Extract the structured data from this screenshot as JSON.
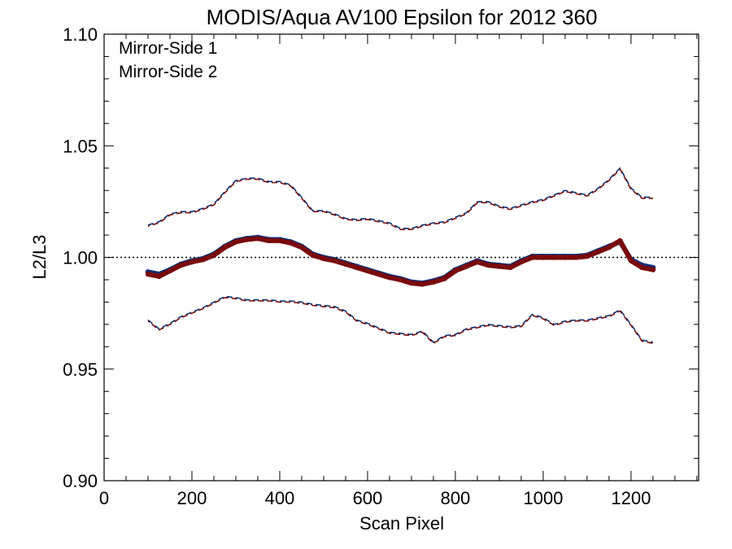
{
  "chart_data": {
    "type": "line",
    "title": "MODIS/Aqua AV100 Epsilon for 2012 360",
    "xlabel": "Scan Pixel",
    "ylabel": "L2/L3",
    "xlim": [
      0,
      1354
    ],
    "ylim": [
      0.9,
      1.1
    ],
    "x_ticks": [
      0,
      200,
      400,
      600,
      800,
      1000,
      1200
    ],
    "x_tick_labels": [
      "0",
      "200",
      "400",
      "600",
      "800",
      "1000",
      "1200"
    ],
    "y_ticks": [
      0.9,
      0.95,
      1.0,
      1.05,
      1.1
    ],
    "y_tick_labels": [
      "0.90",
      "0.95",
      "1.00",
      "1.05",
      "1.10"
    ],
    "reference_line": {
      "y": 1.0,
      "style": "dotted"
    },
    "legend_position": "top-left",
    "x": [
      100,
      125,
      150,
      175,
      200,
      225,
      250,
      275,
      300,
      325,
      350,
      375,
      400,
      425,
      450,
      475,
      500,
      525,
      550,
      575,
      600,
      625,
      650,
      675,
      700,
      725,
      750,
      775,
      800,
      825,
      850,
      875,
      900,
      925,
      950,
      975,
      1000,
      1025,
      1050,
      1075,
      1100,
      1125,
      1150,
      1175,
      1200,
      1225,
      1250
    ],
    "series": [
      {
        "name": "Mirror-Side 1",
        "color": "#0a2f7a",
        "mean": [
          0.9935,
          0.9925,
          0.9945,
          0.997,
          0.9985,
          0.9995,
          1.0015,
          1.005,
          1.0075,
          1.0085,
          1.009,
          1.008,
          1.008,
          1.007,
          1.005,
          1.0015,
          1.0,
          0.999,
          0.9975,
          0.996,
          0.9945,
          0.993,
          0.9915,
          0.9905,
          0.989,
          0.9885,
          0.9895,
          0.991,
          0.9945,
          0.9965,
          0.9985,
          0.997,
          0.9965,
          0.996,
          0.9985,
          1.0005,
          1.0005,
          1.0005,
          1.0005,
          1.0005,
          1.001,
          1.003,
          1.005,
          1.007,
          0.999,
          0.9965,
          0.9955
        ],
        "upper": [
          1.0145,
          1.016,
          1.0195,
          1.0205,
          1.0205,
          1.022,
          1.024,
          1.0295,
          1.0345,
          1.0355,
          1.0355,
          1.034,
          1.034,
          1.0325,
          1.027,
          1.021,
          1.021,
          1.0195,
          1.0175,
          1.017,
          1.0175,
          1.0165,
          1.0155,
          1.013,
          1.013,
          1.0145,
          1.0155,
          1.016,
          1.018,
          1.02,
          1.025,
          1.025,
          1.023,
          1.022,
          1.0235,
          1.025,
          1.026,
          1.028,
          1.03,
          1.029,
          1.028,
          1.031,
          1.035,
          1.04,
          1.031,
          1.027,
          1.027
        ],
        "lower": [
          0.972,
          0.968,
          0.9705,
          0.9735,
          0.9755,
          0.9775,
          0.98,
          0.9825,
          0.982,
          0.981,
          0.981,
          0.981,
          0.9805,
          0.9805,
          0.98,
          0.979,
          0.9785,
          0.978,
          0.976,
          0.972,
          0.9705,
          0.9685,
          0.9665,
          0.966,
          0.9655,
          0.967,
          0.962,
          0.965,
          0.9655,
          0.968,
          0.969,
          0.97,
          0.9695,
          0.969,
          0.9695,
          0.9745,
          0.973,
          0.97,
          0.9715,
          0.972,
          0.972,
          0.973,
          0.974,
          0.9765,
          0.97,
          0.963,
          0.962
        ]
      },
      {
        "name": "Mirror-Side 2",
        "color": "#7a0a0a",
        "mean": [
          0.9925,
          0.9915,
          0.994,
          0.9965,
          0.998,
          0.999,
          1.001,
          1.0045,
          1.007,
          1.008,
          1.0085,
          1.0075,
          1.0075,
          1.0065,
          1.0045,
          1.001,
          0.9995,
          0.9985,
          0.997,
          0.9955,
          0.994,
          0.9925,
          0.991,
          0.99,
          0.9885,
          0.988,
          0.989,
          0.9905,
          0.994,
          0.996,
          0.998,
          0.9965,
          0.996,
          0.9955,
          0.998,
          1.0,
          1.0,
          1.0,
          1.0,
          1.0,
          1.0005,
          1.0025,
          1.0045,
          1.0075,
          0.9985,
          0.9955,
          0.9945
        ],
        "upper": [
          1.014,
          1.0155,
          1.019,
          1.02,
          1.02,
          1.0215,
          1.0235,
          1.029,
          1.034,
          1.035,
          1.035,
          1.0335,
          1.0335,
          1.032,
          1.0265,
          1.0205,
          1.0205,
          1.019,
          1.017,
          1.0165,
          1.017,
          1.016,
          1.015,
          1.0125,
          1.0125,
          1.014,
          1.015,
          1.0155,
          1.0175,
          1.0195,
          1.0245,
          1.0245,
          1.0225,
          1.0215,
          1.023,
          1.0245,
          1.0255,
          1.0275,
          1.0295,
          1.0285,
          1.0275,
          1.0305,
          1.0345,
          1.0395,
          1.0305,
          1.0265,
          1.0265
        ],
        "lower": [
          0.9715,
          0.9675,
          0.97,
          0.973,
          0.975,
          0.977,
          0.9795,
          0.982,
          0.9815,
          0.9805,
          0.9805,
          0.9805,
          0.98,
          0.98,
          0.9795,
          0.9785,
          0.978,
          0.9775,
          0.9755,
          0.9715,
          0.97,
          0.968,
          0.966,
          0.9655,
          0.965,
          0.9665,
          0.9615,
          0.9645,
          0.965,
          0.9675,
          0.9685,
          0.9695,
          0.969,
          0.9685,
          0.969,
          0.974,
          0.9725,
          0.9695,
          0.971,
          0.9715,
          0.9715,
          0.9725,
          0.9735,
          0.976,
          0.9695,
          0.9625,
          0.9615
        ]
      }
    ]
  }
}
